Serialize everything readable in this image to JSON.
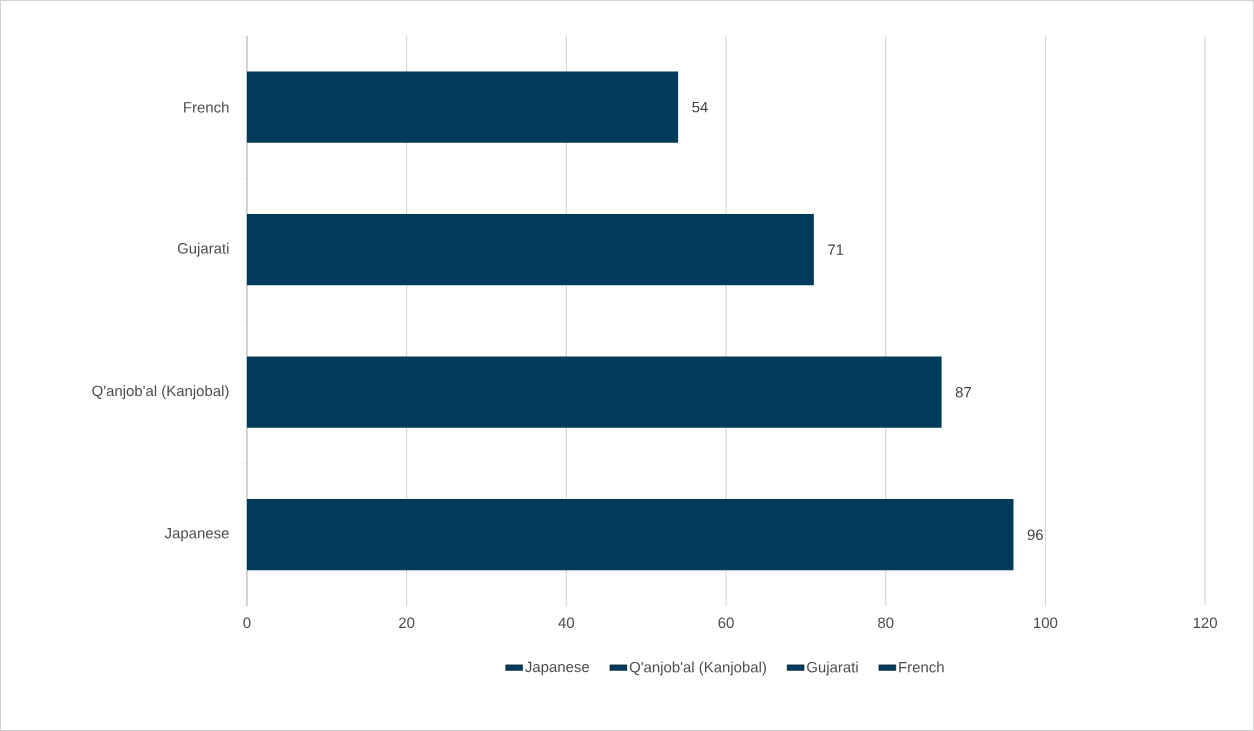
{
  "chart_data": {
    "type": "bar",
    "orientation": "horizontal",
    "categories": [
      "French",
      "Gujarati",
      "Q'anjob'al (Kanjobal)",
      "Japanese"
    ],
    "series": [
      {
        "name": "Japanese",
        "color": "#003b5c",
        "values": [
          null,
          null,
          null,
          96
        ]
      },
      {
        "name": "Q'anjob'al (Kanjobal)",
        "color": "#003b5c",
        "values": [
          null,
          null,
          87,
          null
        ]
      },
      {
        "name": "Gujarati",
        "color": "#003b5c",
        "values": [
          null,
          71,
          null,
          null
        ]
      },
      {
        "name": "French",
        "color": "#003b5c",
        "values": [
          54,
          null,
          null,
          null
        ]
      }
    ],
    "xlim": [
      0,
      120
    ],
    "xticks": [
      0,
      20,
      40,
      60,
      80,
      100,
      120
    ],
    "grid": "x",
    "legend": "bottom",
    "data_labels": true
  }
}
